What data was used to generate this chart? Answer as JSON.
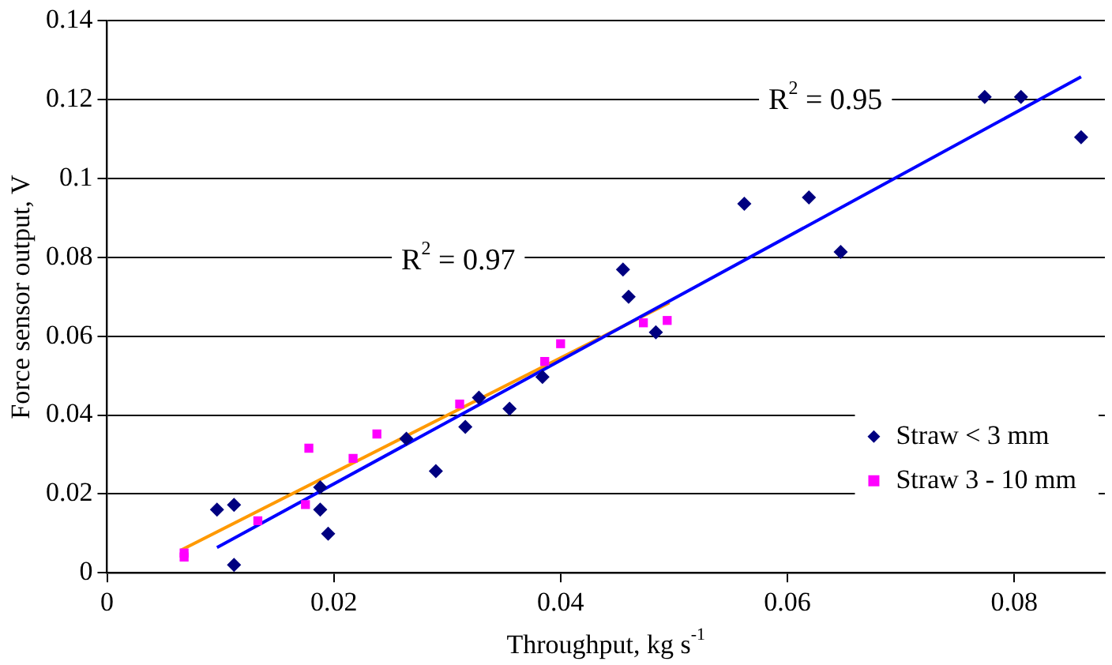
{
  "chart_data": {
    "type": "scatter",
    "xlabel": "Throughput, kg s$^{-1}$",
    "ylabel": "Force sensor output, V",
    "xlim": [
      0,
      0.088
    ],
    "xticks": [
      0,
      0.02,
      0.04,
      0.06,
      0.08
    ],
    "ylim": [
      0,
      0.14
    ],
    "yticks": [
      0,
      0.02,
      0.04,
      0.06,
      0.08,
      0.1,
      0.12,
      0.14
    ],
    "grid": "y",
    "legend": "right",
    "series": [
      {
        "name": "Straw < 3 mm",
        "color": "#000080",
        "marker": "diamond",
        "x": [
          0.0097,
          0.0112,
          0.0112,
          0.0188,
          0.0188,
          0.0195,
          0.0264,
          0.029,
          0.0316,
          0.0328,
          0.0355,
          0.0384,
          0.0455,
          0.046,
          0.0484,
          0.0562,
          0.0619,
          0.0647,
          0.0774,
          0.0806,
          0.0859
        ],
        "values": [
          0.016,
          0.0172,
          0.002,
          0.0217,
          0.016,
          0.0099,
          0.034,
          0.0258,
          0.037,
          0.0444,
          0.0416,
          0.0497,
          0.0769,
          0.07,
          0.061,
          0.0936,
          0.0952,
          0.0814,
          0.1207,
          0.1207,
          0.1105
        ]
      },
      {
        "name": "Straw 3 - 10 mm",
        "color": "#ff00ff",
        "marker": "square",
        "x": [
          0.0068,
          0.0068,
          0.0133,
          0.0178,
          0.0175,
          0.0217,
          0.0238,
          0.0311,
          0.0386,
          0.04,
          0.0473,
          0.0494
        ],
        "values": [
          0.005,
          0.004,
          0.0132,
          0.0316,
          0.0173,
          0.029,
          0.0352,
          0.0428,
          0.0536,
          0.0581,
          0.0634,
          0.064
        ]
      },
      {
        "type": "line",
        "color": "#0000ff",
        "marker": "none",
        "x": [
          0.0097,
          0.0859
        ],
        "values": [
          0.0064,
          0.1258
        ]
      },
      {
        "type": "line",
        "color": "#ff9900",
        "marker": "none",
        "x": [
          0.0065,
          0.0496
        ],
        "values": [
          0.0057,
          0.0685
        ]
      }
    ],
    "annotations": [
      "R$^{2}$ = 0.95",
      "R$^{2}$ = 0.97"
    ]
  }
}
